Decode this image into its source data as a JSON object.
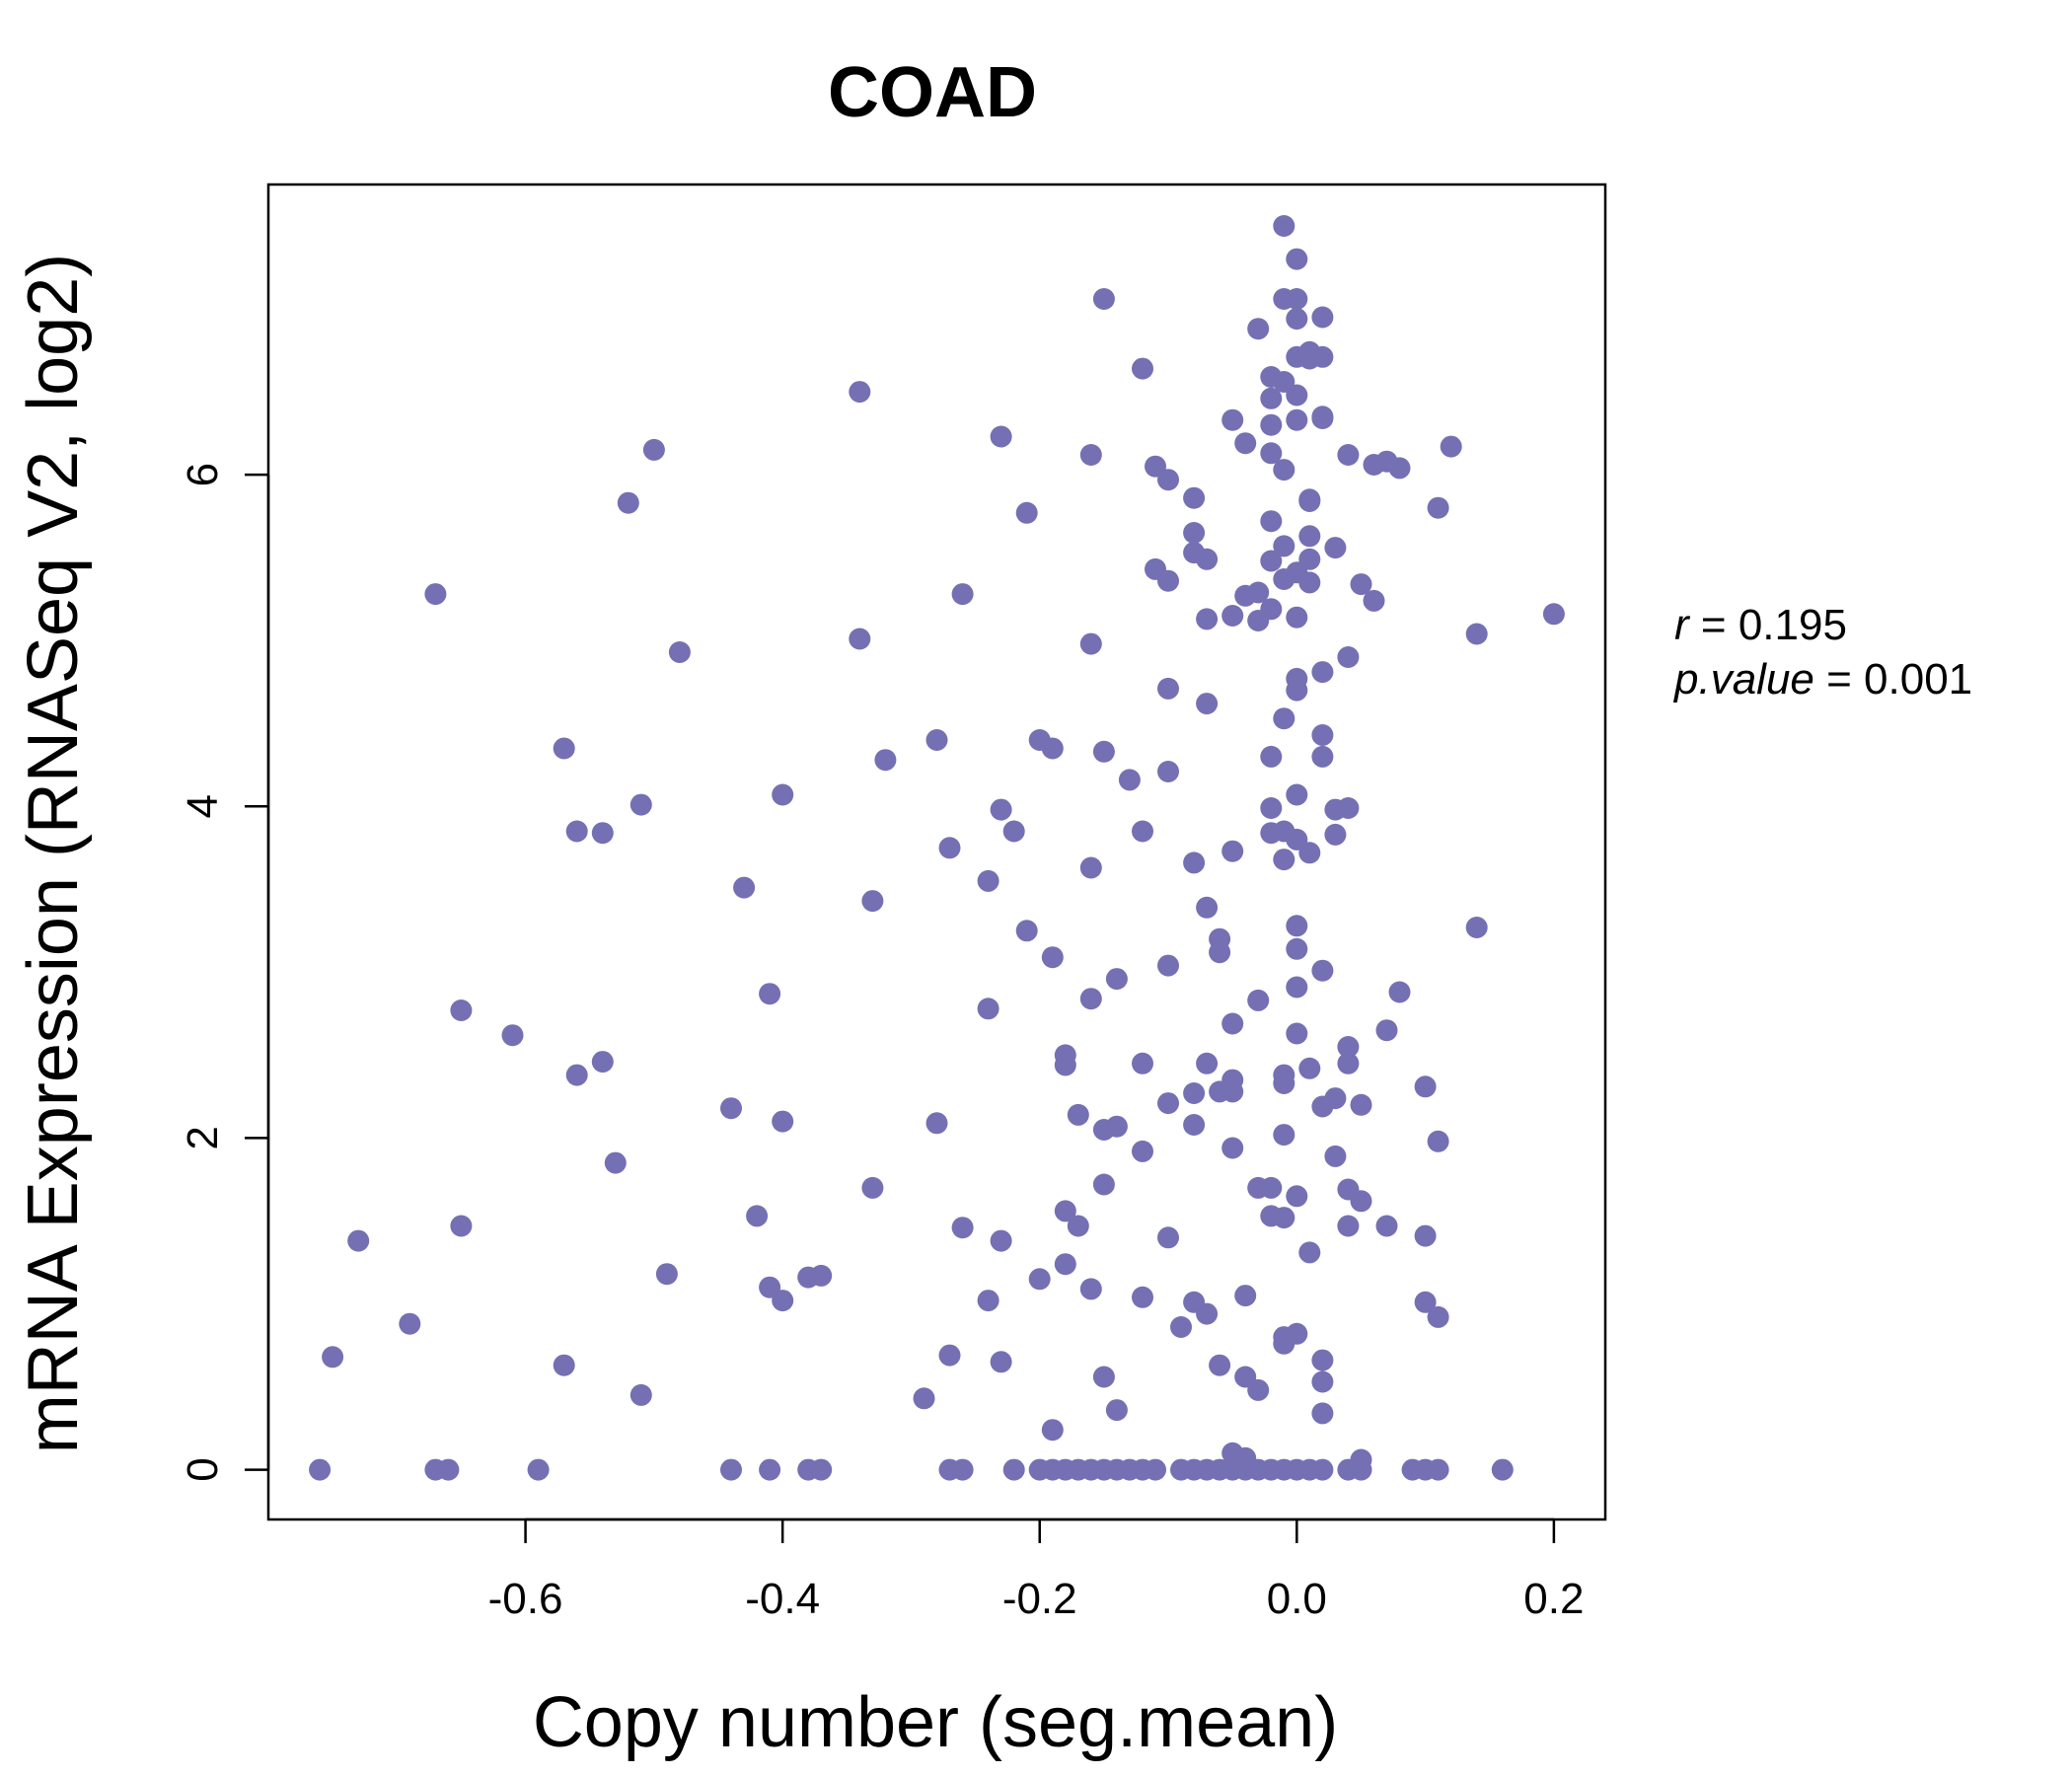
{
  "chart_data": {
    "type": "scatter",
    "title": "COAD",
    "xlabel": "Copy number (seg.mean)",
    "ylabel": "mRNA Expression (RNASeq V2, log2)",
    "xlim": [
      -0.8,
      0.24
    ],
    "ylim": [
      -0.3,
      7.75
    ],
    "x_ticks": [
      -0.6,
      -0.4,
      -0.2,
      0.0,
      0.2
    ],
    "x_tick_labels": [
      "-0.6",
      "-0.4",
      "-0.2",
      "0.0",
      "0.2"
    ],
    "y_ticks": [
      0,
      2,
      4,
      6
    ],
    "y_tick_labels": [
      "0",
      "2",
      "4",
      "6"
    ],
    "grid": false,
    "stats": {
      "r_label": "r",
      "r_value": "0.195",
      "p_label": "p.value",
      "p_value": "0.001"
    },
    "point_color": "#7570b3",
    "points": [
      [
        -0.76,
        0
      ],
      [
        -0.67,
        0
      ],
      [
        -0.66,
        0
      ],
      [
        -0.59,
        0
      ],
      [
        -0.44,
        0
      ],
      [
        -0.41,
        0
      ],
      [
        -0.38,
        0
      ],
      [
        -0.37,
        0
      ],
      [
        -0.27,
        0
      ],
      [
        -0.26,
        0
      ],
      [
        -0.22,
        0
      ],
      [
        -0.2,
        0
      ],
      [
        -0.19,
        0
      ],
      [
        -0.18,
        0
      ],
      [
        -0.17,
        0
      ],
      [
        -0.16,
        0
      ],
      [
        -0.15,
        0
      ],
      [
        -0.14,
        0
      ],
      [
        -0.13,
        0
      ],
      [
        -0.12,
        0
      ],
      [
        -0.11,
        0
      ],
      [
        -0.09,
        0
      ],
      [
        -0.08,
        0
      ],
      [
        -0.07,
        0
      ],
      [
        -0.06,
        0
      ],
      [
        -0.05,
        0
      ],
      [
        -0.04,
        0
      ],
      [
        -0.03,
        0
      ],
      [
        -0.02,
        0
      ],
      [
        -0.01,
        0
      ],
      [
        0.0,
        0
      ],
      [
        0.01,
        0
      ],
      [
        0.02,
        0
      ],
      [
        0.04,
        0
      ],
      [
        0.05,
        0
      ],
      [
        0.09,
        0
      ],
      [
        0.1,
        0
      ],
      [
        0.11,
        0
      ],
      [
        0.16,
        0
      ],
      [
        -0.75,
        0.68
      ],
      [
        -0.73,
        1.38
      ],
      [
        -0.69,
        0.88
      ],
      [
        -0.67,
        5.28
      ],
      [
        -0.65,
        2.77
      ],
      [
        -0.65,
        1.47
      ],
      [
        -0.61,
        2.62
      ],
      [
        -0.57,
        4.35
      ],
      [
        -0.57,
        0.63
      ],
      [
        -0.56,
        2.38
      ],
      [
        -0.56,
        3.85
      ],
      [
        -0.54,
        3.84
      ],
      [
        -0.54,
        2.46
      ],
      [
        -0.53,
        1.85
      ],
      [
        -0.52,
        5.83
      ],
      [
        -0.51,
        4.01
      ],
      [
        -0.51,
        0.45
      ],
      [
        -0.5,
        6.15
      ],
      [
        -0.49,
        1.18
      ],
      [
        -0.48,
        4.93
      ],
      [
        -0.44,
        2.18
      ],
      [
        -0.43,
        3.51
      ],
      [
        -0.42,
        1.53
      ],
      [
        -0.41,
        2.87
      ],
      [
        -0.41,
        1.1
      ],
      [
        -0.4,
        4.07
      ],
      [
        -0.4,
        2.1
      ],
      [
        -0.4,
        1.02
      ],
      [
        -0.38,
        1.16
      ],
      [
        -0.37,
        1.17
      ],
      [
        -0.34,
        6.5
      ],
      [
        -0.34,
        5.01
      ],
      [
        -0.33,
        3.43
      ],
      [
        -0.33,
        1.7
      ],
      [
        -0.32,
        4.28
      ],
      [
        -0.29,
        0.43
      ],
      [
        -0.28,
        4.4
      ],
      [
        -0.28,
        2.09
      ],
      [
        -0.27,
        3.75
      ],
      [
        -0.27,
        0.69
      ],
      [
        -0.26,
        5.28
      ],
      [
        -0.26,
        1.46
      ],
      [
        -0.24,
        3.55
      ],
      [
        -0.24,
        2.78
      ],
      [
        -0.24,
        1.02
      ],
      [
        -0.23,
        6.23
      ],
      [
        -0.23,
        3.98
      ],
      [
        -0.23,
        1.38
      ],
      [
        -0.23,
        0.65
      ],
      [
        -0.22,
        3.85
      ],
      [
        -0.21,
        5.77
      ],
      [
        -0.21,
        3.25
      ],
      [
        -0.2,
        4.4
      ],
      [
        -0.2,
        1.15
      ],
      [
        -0.19,
        4.35
      ],
      [
        -0.19,
        3.09
      ],
      [
        -0.19,
        0.24
      ],
      [
        -0.18,
        2.5
      ],
      [
        -0.18,
        2.44
      ],
      [
        -0.18,
        1.56
      ],
      [
        -0.18,
        1.24
      ],
      [
        -0.17,
        2.14
      ],
      [
        -0.17,
        1.47
      ],
      [
        -0.16,
        6.12
      ],
      [
        -0.16,
        4.98
      ],
      [
        -0.16,
        3.63
      ],
      [
        -0.16,
        2.84
      ],
      [
        -0.16,
        1.09
      ],
      [
        -0.15,
        7.06
      ],
      [
        -0.15,
        4.33
      ],
      [
        -0.15,
        2.05
      ],
      [
        -0.15,
        1.72
      ],
      [
        -0.15,
        0.56
      ],
      [
        -0.14,
        2.96
      ],
      [
        -0.14,
        2.07
      ],
      [
        -0.14,
        0.36
      ],
      [
        -0.13,
        4.16
      ],
      [
        -0.12,
        6.64
      ],
      [
        -0.12,
        3.85
      ],
      [
        -0.12,
        2.45
      ],
      [
        -0.12,
        1.92
      ],
      [
        -0.12,
        1.04
      ],
      [
        -0.11,
        5.43
      ],
      [
        -0.11,
        6.05
      ],
      [
        -0.1,
        5.97
      ],
      [
        -0.1,
        5.36
      ],
      [
        -0.1,
        1.4
      ],
      [
        -0.1,
        3.04
      ],
      [
        -0.1,
        4.21
      ],
      [
        -0.1,
        4.71
      ],
      [
        -0.1,
        2.21
      ],
      [
        -0.09,
        0.86
      ],
      [
        -0.08,
        5.86
      ],
      [
        -0.08,
        5.65
      ],
      [
        -0.08,
        5.53
      ],
      [
        -0.08,
        3.66
      ],
      [
        -0.08,
        2.27
      ],
      [
        -0.08,
        2.08
      ],
      [
        -0.08,
        1.01
      ],
      [
        -0.07,
        5.49
      ],
      [
        -0.07,
        4.62
      ],
      [
        -0.07,
        3.39
      ],
      [
        -0.07,
        2.45
      ],
      [
        -0.07,
        0.94
      ],
      [
        -0.07,
        5.13
      ],
      [
        -0.06,
        3.12
      ],
      [
        -0.06,
        3.2
      ],
      [
        -0.06,
        2.28
      ],
      [
        -0.06,
        0.63
      ],
      [
        -0.05,
        6.33
      ],
      [
        -0.05,
        5.15
      ],
      [
        -0.05,
        3.73
      ],
      [
        -0.05,
        2.69
      ],
      [
        -0.05,
        2.35
      ],
      [
        -0.05,
        2.28
      ],
      [
        -0.05,
        1.94
      ],
      [
        -0.05,
        0.1
      ],
      [
        -0.04,
        6.19
      ],
      [
        -0.04,
        5.27
      ],
      [
        -0.04,
        1.05
      ],
      [
        -0.04,
        0.56
      ],
      [
        -0.04,
        0.07
      ],
      [
        -0.03,
        5.12
      ],
      [
        -0.03,
        5.29
      ],
      [
        -0.03,
        1.7
      ],
      [
        -0.03,
        2.83
      ],
      [
        -0.03,
        0.48
      ],
      [
        -0.03,
        6.88
      ],
      [
        -0.02,
        6.59
      ],
      [
        -0.02,
        6.46
      ],
      [
        -0.02,
        6.3
      ],
      [
        -0.02,
        6.13
      ],
      [
        -0.02,
        5.72
      ],
      [
        -0.02,
        5.48
      ],
      [
        -0.02,
        5.19
      ],
      [
        -0.02,
        4.3
      ],
      [
        -0.02,
        3.99
      ],
      [
        -0.02,
        3.84
      ],
      [
        -0.02,
        1.7
      ],
      [
        -0.02,
        1.53
      ],
      [
        -0.01,
        6.56
      ],
      [
        -0.01,
        6.03
      ],
      [
        -0.01,
        5.37
      ],
      [
        -0.01,
        3.85
      ],
      [
        -0.01,
        3.68
      ],
      [
        -0.01,
        2.33
      ],
      [
        -0.01,
        2.02
      ],
      [
        -0.01,
        1.52
      ],
      [
        -0.01,
        0.8
      ],
      [
        -0.01,
        0.76
      ],
      [
        -0.01,
        7.5
      ],
      [
        -0.01,
        7.06
      ],
      [
        -0.01,
        5.57
      ],
      [
        -0.01,
        4.53
      ],
      [
        -0.01,
        2.38
      ],
      [
        0.0,
        7.3
      ],
      [
        0.0,
        7.06
      ],
      [
        0.0,
        6.94
      ],
      [
        0.0,
        6.71
      ],
      [
        0.0,
        6.48
      ],
      [
        0.0,
        6.33
      ],
      [
        0.0,
        5.41
      ],
      [
        0.0,
        5.14
      ],
      [
        0.0,
        3.8
      ],
      [
        0.0,
        3.28
      ],
      [
        0.0,
        3.14
      ],
      [
        0.0,
        2.63
      ],
      [
        0.0,
        2.91
      ],
      [
        0.0,
        1.65
      ],
      [
        0.0,
        0.82
      ],
      [
        0.0,
        4.77
      ],
      [
        0.0,
        4.07
      ],
      [
        0.0,
        4.7
      ],
      [
        0.01,
        6.7
      ],
      [
        0.01,
        6.74
      ],
      [
        0.01,
        5.85
      ],
      [
        0.01,
        5.84
      ],
      [
        0.01,
        5.63
      ],
      [
        0.01,
        5.49
      ],
      [
        0.01,
        5.35
      ],
      [
        0.01,
        3.72
      ],
      [
        0.01,
        2.42
      ],
      [
        0.01,
        1.31
      ],
      [
        0.02,
        6.95
      ],
      [
        0.02,
        6.71
      ],
      [
        0.02,
        6.35
      ],
      [
        0.02,
        6.34
      ],
      [
        0.02,
        4.81
      ],
      [
        0.02,
        4.43
      ],
      [
        0.02,
        4.3
      ],
      [
        0.02,
        3.01
      ],
      [
        0.02,
        2.19
      ],
      [
        0.02,
        0.66
      ],
      [
        0.02,
        0.53
      ],
      [
        0.02,
        0.34
      ],
      [
        0.03,
        5.56
      ],
      [
        0.03,
        3.98
      ],
      [
        0.03,
        3.83
      ],
      [
        0.03,
        2.24
      ],
      [
        0.03,
        1.89
      ],
      [
        0.04,
        6.12
      ],
      [
        0.04,
        4.9
      ],
      [
        0.04,
        3.99
      ],
      [
        0.04,
        2.55
      ],
      [
        0.04,
        2.45
      ],
      [
        0.04,
        1.69
      ],
      [
        0.04,
        1.47
      ],
      [
        0.05,
        5.34
      ],
      [
        0.05,
        1.62
      ],
      [
        0.05,
        0.06
      ],
      [
        0.05,
        2.2
      ],
      [
        0.06,
        6.06
      ],
      [
        0.06,
        5.24
      ],
      [
        0.07,
        6.08
      ],
      [
        0.07,
        2.65
      ],
      [
        0.07,
        1.47
      ],
      [
        0.08,
        6.04
      ],
      [
        0.08,
        2.88
      ],
      [
        0.1,
        2.31
      ],
      [
        0.1,
        1.41
      ],
      [
        0.1,
        1.01
      ],
      [
        0.11,
        0.92
      ],
      [
        0.11,
        1.98
      ],
      [
        0.11,
        5.8
      ],
      [
        0.12,
        6.17
      ],
      [
        0.14,
        3.27
      ],
      [
        0.14,
        5.04
      ],
      [
        0.2,
        5.16
      ]
    ]
  }
}
